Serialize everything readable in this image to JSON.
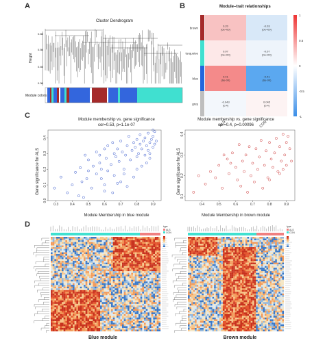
{
  "panel_a": {
    "letter": "A",
    "title": "Cluster Dendrogram",
    "ylabel": "Height",
    "yticks": [
      "0.65",
      "0.55",
      "0.45",
      "0.35"
    ],
    "module_colors_label": "Module colors"
  },
  "panel_b": {
    "letter": "B",
    "title": "Module–trait relationships",
    "rows": [
      {
        "name": "brown",
        "color": "#a52a2a",
        "cells": [
          {
            "text": "0.20\n(0e+00)",
            "color": "#f8c2c2"
          },
          {
            "text": "-0.03\n(0e+00)",
            "color": "#d8e8f8"
          }
        ]
      },
      {
        "name": "turquoise",
        "color": "#40e0d0",
        "cells": [
          {
            "text": "0.07\n(0e+00)",
            "color": "#fde8e8"
          },
          {
            "text": "-0.07\n(0e+00)",
            "color": "#eef4fb"
          }
        ]
      },
      {
        "name": "blue",
        "color": "#2266dd",
        "cells": [
          {
            "text": "0.41\n(6e-00)",
            "color": "#f48a8a"
          },
          {
            "text": "-0.41\n(6e-00)",
            "color": "#5ba8f0"
          }
        ]
      },
      {
        "name": "grey",
        "color": "#bebebe",
        "cells": [
          {
            "text": "-0.043\n(0.4)",
            "color": "#f3f7fc"
          },
          {
            "text": "0.045\n(0.4)",
            "color": "#fdf3f3"
          }
        ]
      }
    ],
    "columns": [
      "ALS",
      "CON"
    ],
    "scale_ticks": [
      "1",
      "0.5",
      "0",
      "-0.5",
      "-1"
    ],
    "colors": {
      "pos": "#ee3333",
      "neg": "#3a8ee8",
      "mid": "#ffffff"
    }
  },
  "panel_c": {
    "letter": "C",
    "blue": {
      "title_line1": "Module membership vs. gene significance",
      "title_line2": "cor=0.53, p=1.1e-07",
      "xlabel": "Module Membership in blue module",
      "ylabel": "Gene significance for ALS",
      "color": "#3355cc"
    },
    "brown": {
      "title_line1": "Module membership vs. gene significance",
      "title_line2": "cor=0.4, p=0.00096",
      "xlabel": "Module Membership in brown module",
      "ylabel": "Gene significance for ALS",
      "color": "#cc3333"
    }
  },
  "panel_d": {
    "letter": "D",
    "left_caption": "Blue module",
    "right_caption": "Brown module",
    "legend_title": "type",
    "legend_items": [
      "ALS",
      "CON"
    ],
    "legend_colors": [
      "#f08080",
      "#40e0d0"
    ]
  },
  "chart_data": [
    {
      "type": "scatter",
      "title": "Module membership vs. gene significance",
      "subtitle": "cor=0.53, p=1.1e-07",
      "xlabel": "Module Membership in blue module",
      "ylabel": "Gene significance for ALS",
      "xlim": [
        0.25,
        0.95
      ],
      "ylim": [
        0,
        0.45
      ],
      "xticks": [
        0.3,
        0.4,
        0.5,
        0.6,
        0.7,
        0.8,
        0.9
      ],
      "yticks": [
        0.0,
        0.1,
        0.2,
        0.3,
        0.4
      ],
      "grid": false,
      "x": [
        0.29,
        0.33,
        0.37,
        0.4,
        0.42,
        0.44,
        0.45,
        0.46,
        0.47,
        0.49,
        0.5,
        0.5,
        0.52,
        0.53,
        0.55,
        0.55,
        0.57,
        0.57,
        0.58,
        0.6,
        0.6,
        0.61,
        0.62,
        0.62,
        0.64,
        0.65,
        0.66,
        0.66,
        0.67,
        0.68,
        0.69,
        0.7,
        0.71,
        0.72,
        0.73,
        0.74,
        0.75,
        0.76,
        0.77,
        0.78,
        0.79,
        0.8,
        0.8,
        0.81,
        0.82,
        0.82,
        0.83,
        0.84,
        0.85,
        0.85,
        0.86,
        0.87,
        0.87,
        0.88,
        0.88,
        0.89,
        0.9,
        0.9,
        0.91,
        0.91,
        0.92,
        0.6,
        0.7,
        0.78,
        0.83,
        0.88,
        0.48,
        0.58,
        0.68,
        0.74,
        0.86,
        0.9,
        0.65,
        0.72,
        0.8
      ],
      "y": [
        0.08,
        0.15,
        0.05,
        0.1,
        0.18,
        0.03,
        0.21,
        0.12,
        0.02,
        0.14,
        0.26,
        0.19,
        0.08,
        0.22,
        0.31,
        0.17,
        0.24,
        0.29,
        0.2,
        0.33,
        0.1,
        0.27,
        0.35,
        0.19,
        0.23,
        0.37,
        0.3,
        0.16,
        0.28,
        0.33,
        0.25,
        0.38,
        0.31,
        0.2,
        0.29,
        0.35,
        0.41,
        0.26,
        0.32,
        0.37,
        0.34,
        0.39,
        0.28,
        0.3,
        0.36,
        0.42,
        0.33,
        0.38,
        0.29,
        0.4,
        0.35,
        0.32,
        0.43,
        0.37,
        0.3,
        0.39,
        0.34,
        0.41,
        0.36,
        0.44,
        0.38,
        0.06,
        0.12,
        0.15,
        0.22,
        0.27,
        0.29,
        0.14,
        0.11,
        0.09,
        0.24,
        0.45,
        0.05,
        0.17,
        0.2
      ]
    },
    {
      "type": "scatter",
      "title": "Module membership vs. gene significance",
      "subtitle": "cor=0.4, p=0.00096",
      "xlabel": "Module Membership in brown module",
      "ylabel": "Gene significance for ALS",
      "xlim": [
        0.3,
        0.95
      ],
      "ylim": [
        0.08,
        0.42
      ],
      "xticks": [
        0.4,
        0.5,
        0.6,
        0.7,
        0.8,
        0.9
      ],
      "yticks": [
        0.1,
        0.2,
        0.3,
        0.4
      ],
      "grid": false,
      "x": [
        0.35,
        0.38,
        0.42,
        0.45,
        0.48,
        0.5,
        0.52,
        0.55,
        0.56,
        0.58,
        0.6,
        0.61,
        0.62,
        0.64,
        0.65,
        0.66,
        0.68,
        0.69,
        0.7,
        0.72,
        0.73,
        0.74,
        0.75,
        0.77,
        0.78,
        0.79,
        0.8,
        0.81,
        0.82,
        0.83,
        0.84,
        0.85,
        0.86,
        0.87,
        0.88,
        0.89,
        0.9,
        0.9,
        0.91,
        0.92,
        0.93,
        0.63,
        0.71,
        0.76,
        0.86,
        0.57,
        0.67,
        0.8,
        0.88,
        0.53
      ],
      "y": [
        0.12,
        0.2,
        0.16,
        0.22,
        0.19,
        0.25,
        0.14,
        0.28,
        0.21,
        0.31,
        0.24,
        0.18,
        0.35,
        0.27,
        0.22,
        0.3,
        0.34,
        0.2,
        0.26,
        0.33,
        0.23,
        0.29,
        0.37,
        0.25,
        0.32,
        0.19,
        0.36,
        0.28,
        0.24,
        0.31,
        0.38,
        0.22,
        0.34,
        0.27,
        0.4,
        0.3,
        0.36,
        0.25,
        0.39,
        0.33,
        0.27,
        0.15,
        0.17,
        0.14,
        0.21,
        0.26,
        0.12,
        0.18,
        0.23,
        0.3
      ]
    }
  ]
}
